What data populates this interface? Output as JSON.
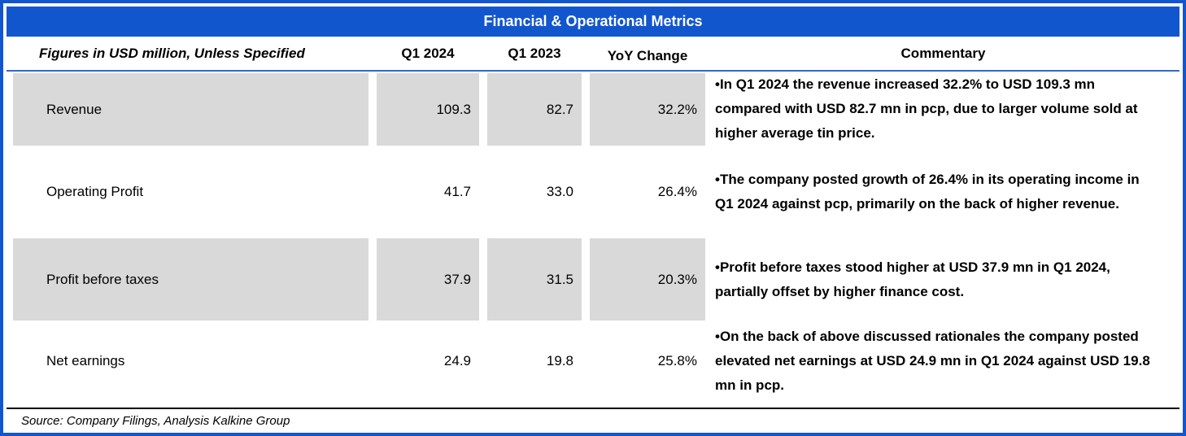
{
  "title": "Financial & Operational Metrics",
  "colors": {
    "accent_blue": "#1256CE",
    "row_shade_gray": "#D9D9D9",
    "header_rule_blue": "#2E6BD8",
    "source_rule_black": "#000000"
  },
  "table": {
    "header": {
      "label": "Figures in USD million, Unless Specified",
      "col_q1_2024": "Q1 2024",
      "col_q1_2023": "Q1 2023",
      "col_yoy": "YoY Change",
      "col_commentary": "Commentary"
    },
    "rows": [
      {
        "metric": "Revenue",
        "q1_2024": "109.3",
        "q1_2023": "82.7",
        "yoy": "32.2%",
        "commentary": "•In Q1 2024 the revenue increased 32.2% to USD 109.3 mn compared with USD 82.7 mn in pcp, due to larger volume sold at higher average tin price."
      },
      {
        "metric": "Operating Profit",
        "q1_2024": "41.7",
        "q1_2023": "33.0",
        "yoy": "26.4%",
        "commentary": "•The company posted growth of 26.4% in its operating income in Q1 2024 against pcp, primarily on the back of higher revenue."
      },
      {
        "metric": "Profit before taxes",
        "q1_2024": "37.9",
        "q1_2023": "31.5",
        "yoy": "20.3%",
        "commentary": "•Profit before taxes stood higher at USD 37.9 mn in Q1 2024, partially offset by higher finance cost."
      },
      {
        "metric": "Net earnings",
        "q1_2024": "24.9",
        "q1_2023": "19.8",
        "yoy": "25.8%",
        "commentary": "•On the back of above discussed rationales the company posted elevated net earnings at USD 24.9 mn in Q1 2024 against USD 19.8 mn in pcp."
      }
    ]
  },
  "source": "Source: Company Filings, Analysis Kalkine Group"
}
